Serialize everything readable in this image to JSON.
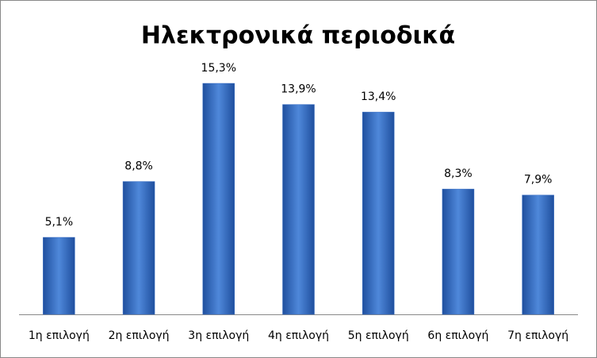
{
  "chart_data": {
    "type": "bar",
    "title": "Ηλεκτρονικά περιοδικά",
    "categories": [
      "1η επιλογή",
      "2η επιλογή",
      "3η επιλογή",
      "4η επιλογή",
      "5η επιλογή",
      "6η επιλογή",
      "7η επιλογή"
    ],
    "values": [
      5.1,
      8.8,
      15.3,
      13.9,
      13.4,
      8.3,
      7.9
    ],
    "value_labels": [
      "5,1%",
      "8,8%",
      "15,3%",
      "13,9%",
      "13,4%",
      "8,3%",
      "7,9%"
    ],
    "color": "#3a6fc4"
  }
}
